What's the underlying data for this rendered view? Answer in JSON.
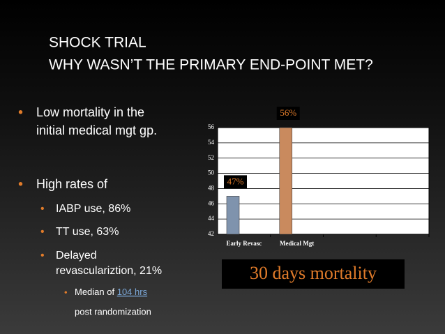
{
  "title_lines": [
    "SHOCK TRIAL",
    "WHY WASN’T THE PRIMARY END-POINT MET?"
  ],
  "bullets": [
    [
      "Low mortality in the",
      "initial medical mgt gp."
    ],
    [
      "High rates of"
    ]
  ],
  "sub_bullets": [
    [
      "IABP use, 86%"
    ],
    [
      "TT use, 63%"
    ],
    [
      "Delayed",
      "revasculariztion, 21%"
    ]
  ],
  "sub_sub_bullet": {
    "text": "Median of",
    "link": "104 hrs",
    "continuation": "post randomization"
  },
  "chart_data": {
    "type": "bar",
    "categories": [
      "Early Revasc",
      "Medical Mgt"
    ],
    "values": [
      47,
      56
    ],
    "value_labels": [
      "47%",
      "56%"
    ],
    "colors": [
      "#7f93ad",
      "#c98a5e"
    ],
    "ylim": [
      42,
      56
    ],
    "yticks": [
      42,
      44,
      46,
      48,
      50,
      52,
      54,
      56
    ],
    "grid": true,
    "annotation": "30 days mortality"
  }
}
